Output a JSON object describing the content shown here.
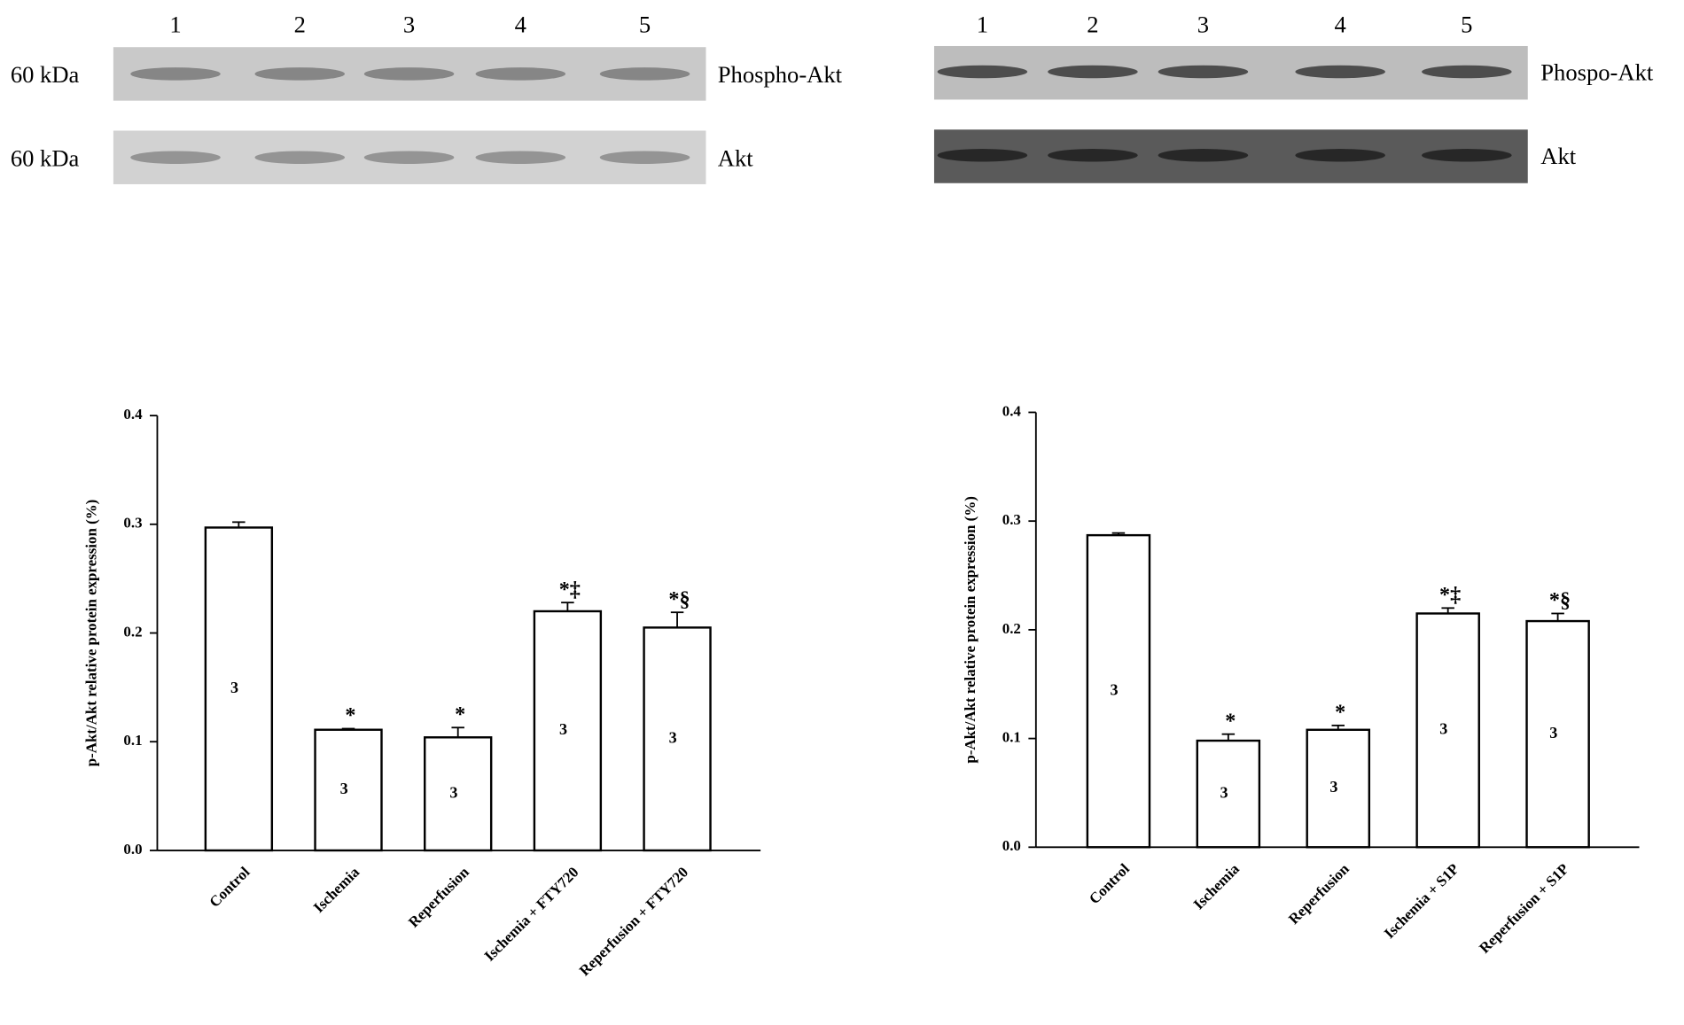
{
  "blots": [
    {
      "lanes": [
        "1",
        "2",
        "3",
        "4",
        "5"
      ],
      "rows": [
        {
          "marker": "60 kDa",
          "label": "Phospho-Akt"
        },
        {
          "marker": "60 kDa",
          "label": "Akt"
        }
      ]
    },
    {
      "lanes": [
        "1",
        "2",
        "3",
        "4",
        "5"
      ],
      "rows": [
        {
          "label": "Phospo-Akt"
        },
        {
          "label": "Akt"
        }
      ]
    }
  ],
  "chart_data": [
    {
      "type": "bar",
      "y_label": "p-Akt/Akt relative protein expression (%)",
      "categories": [
        "Control",
        "Ischemia",
        "Reperfusion",
        "Ischemia + FTY720",
        "Reperfusion + FTY720"
      ],
      "values": [
        0.297,
        0.111,
        0.104,
        0.22,
        0.205
      ],
      "errors": [
        0.005,
        0.001,
        0.009,
        0.008,
        0.014
      ],
      "n": [
        3,
        3,
        3,
        3,
        3
      ],
      "significance": [
        null,
        "*",
        "*",
        "*‡",
        "*§"
      ],
      "color": "#ffffff",
      "ylim": [
        0,
        0.4
      ],
      "yticks": [
        {
          "value": 0,
          "label": "0.0"
        },
        0.1,
        0.2,
        0.3,
        0.4
      ]
    },
    {
      "type": "bar",
      "y_label": "p-Akt/Akt relative protein expression (%)",
      "categories": [
        "Control",
        "Ischemia",
        "Reperfusion",
        "Ischemia + S1P",
        "Reperfusion + S1P"
      ],
      "values": [
        0.287,
        0.098,
        0.108,
        0.215,
        0.208
      ],
      "errors": [
        0.002,
        0.006,
        0.004,
        0.005,
        0.007
      ],
      "n": [
        3,
        3,
        3,
        3,
        3
      ],
      "significance": [
        null,
        "*",
        "*",
        "*‡",
        "*§"
      ],
      "color": "#ffffff",
      "ylim": [
        0,
        0.4
      ],
      "yticks": [
        {
          "value": 0,
          "label": "0.0"
        },
        0.1,
        0.2,
        0.3,
        0.4
      ]
    }
  ]
}
